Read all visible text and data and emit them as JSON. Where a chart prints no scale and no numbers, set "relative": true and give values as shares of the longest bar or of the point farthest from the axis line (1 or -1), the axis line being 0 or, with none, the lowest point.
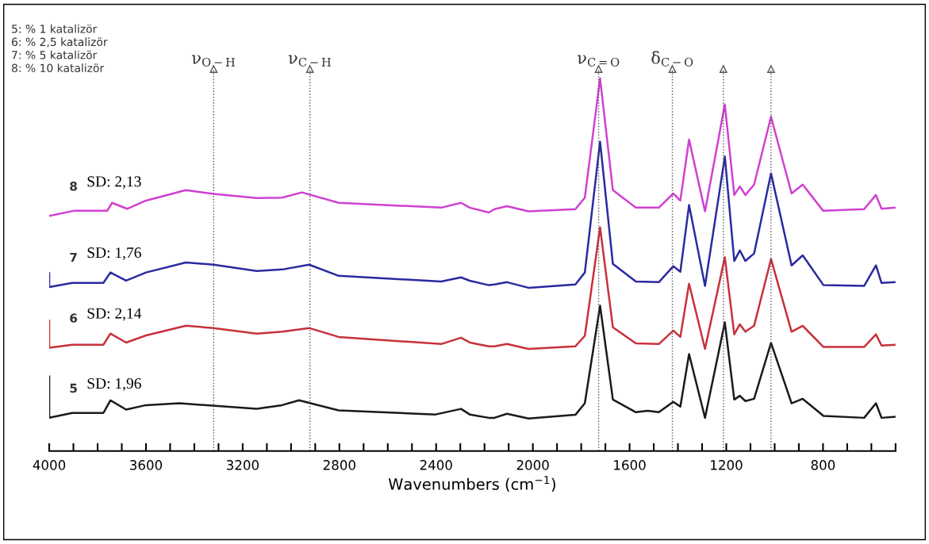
{
  "chart_data": {
    "type": "line",
    "relative": true,
    "xlabel": "Wavenumbers (cm$^{−1}$)",
    "xlim": [
      4000,
      500
    ],
    "xticks": [
      4000,
      {
        "value": 3900,
        "label": null
      },
      {
        "value": 3800,
        "label": null
      },
      {
        "value": 3700,
        "label": null
      },
      3600,
      {
        "value": 3500,
        "label": null
      },
      {
        "value": 3400,
        "label": null
      },
      {
        "value": 3300,
        "label": null
      },
      3200,
      {
        "value": 3100,
        "label": null
      },
      {
        "value": 3000,
        "label": null
      },
      {
        "value": 2900,
        "label": null
      },
      2800,
      {
        "value": 2700,
        "label": null
      },
      {
        "value": 2600,
        "label": null
      },
      {
        "value": 2500,
        "label": null
      },
      2400,
      {
        "value": 2300,
        "label": null
      },
      {
        "value": 2200,
        "label": null
      },
      {
        "value": 2100,
        "label": null
      },
      2000,
      {
        "value": 1900,
        "label": null
      },
      {
        "value": 1800,
        "label": null
      },
      {
        "value": 1700,
        "label": null
      },
      1600,
      {
        "value": 1500,
        "label": null
      },
      {
        "value": 1400,
        "label": null
      },
      {
        "value": 1300,
        "label": null
      },
      1200,
      {
        "value": 1100,
        "label": null
      },
      {
        "value": 1000,
        "label": null
      },
      {
        "value": 900,
        "label": null
      },
      800,
      {
        "value": 700,
        "label": null
      },
      {
        "value": 600,
        "label": null
      },
      {
        "value": 500,
        "label": null
      }
    ],
    "grid": false,
    "marker": "none",
    "line_style": "solid",
    "series": [
      {
        "name": "5",
        "color": "#1a1a1a",
        "x": [
          4000,
          4000,
          3905,
          3776,
          3747,
          3682,
          3600,
          3461,
          3142,
          3037,
          2967,
          2919,
          2803,
          2402,
          2297,
          2261,
          2182,
          2159,
          2107,
          2018,
          1824,
          1785,
          1722,
          1669,
          1574,
          1525,
          1479,
          1419,
          1390,
          1354,
          1288,
          1206,
          1167,
          1144,
          1121,
          1085,
          1015,
          930,
          884,
          798,
          630,
          581,
          558,
          500
        ],
        "values": [
          0.2,
          0.089,
          0.102,
          0.102,
          0.136,
          0.111,
          0.123,
          0.128,
          0.113,
          0.123,
          0.136,
          0.128,
          0.109,
          0.098,
          0.113,
          0.098,
          0.089,
          0.089,
          0.1,
          0.087,
          0.097,
          0.128,
          0.39,
          0.138,
          0.104,
          0.108,
          0.104,
          0.132,
          0.119,
          0.26,
          0.089,
          0.345,
          0.138,
          0.148,
          0.134,
          0.14,
          0.29,
          0.128,
          0.14,
          0.094,
          0.089,
          0.128,
          0.089,
          0.092
        ]
      },
      {
        "name": "6",
        "color": "#c8313a",
        "x": [
          4000,
          4000,
          3905,
          3776,
          3747,
          3682,
          3600,
          3435,
          3320,
          3142,
          3037,
          2925,
          2803,
          2379,
          2297,
          2261,
          2182,
          2159,
          2107,
          2018,
          1824,
          1785,
          1722,
          1669,
          1574,
          1479,
          1419,
          1390,
          1354,
          1288,
          1206,
          1167,
          1144,
          1121,
          1085,
          1015,
          930,
          884,
          798,
          630,
          581,
          558,
          500
        ],
        "values": [
          0.35,
          0.277,
          0.285,
          0.285,
          0.315,
          0.291,
          0.31,
          0.336,
          0.33,
          0.315,
          0.32,
          0.33,
          0.306,
          0.287,
          0.304,
          0.291,
          0.281,
          0.281,
          0.287,
          0.274,
          0.281,
          0.309,
          0.6,
          0.332,
          0.289,
          0.287,
          0.323,
          0.306,
          0.449,
          0.274,
          0.52,
          0.313,
          0.34,
          0.32,
          0.336,
          0.515,
          0.32,
          0.336,
          0.279,
          0.279,
          0.313,
          0.283,
          0.285
        ]
      },
      {
        "name": "7",
        "color": "#2a2aa0",
        "x": [
          4000,
          4000,
          3905,
          3776,
          3747,
          3682,
          3600,
          3435,
          3320,
          3142,
          3037,
          2925,
          2803,
          2379,
          2297,
          2261,
          2182,
          2159,
          2107,
          2018,
          1824,
          1785,
          1722,
          1669,
          1574,
          1479,
          1419,
          1390,
          1354,
          1288,
          1206,
          1167,
          1144,
          1121,
          1085,
          1015,
          930,
          884,
          798,
          630,
          581,
          558,
          500
        ],
        "values": [
          0.477,
          0.44,
          0.451,
          0.451,
          0.479,
          0.457,
          0.479,
          0.506,
          0.5,
          0.483,
          0.487,
          0.5,
          0.47,
          0.455,
          0.466,
          0.457,
          0.445,
          0.447,
          0.453,
          0.438,
          0.447,
          0.479,
          0.83,
          0.502,
          0.455,
          0.453,
          0.496,
          0.481,
          0.66,
          0.443,
          0.79,
          0.51,
          0.538,
          0.51,
          0.53,
          0.745,
          0.498,
          0.525,
          0.445,
          0.443,
          0.498,
          0.451,
          0.453
        ]
      },
      {
        "name": "8",
        "color": "#d040d0",
        "x": [
          4000,
          3895,
          3760,
          3740,
          3678,
          3600,
          3435,
          3320,
          3142,
          3037,
          2955,
          2803,
          2379,
          2297,
          2261,
          2182,
          2159,
          2107,
          2018,
          1824,
          1785,
          1722,
          1669,
          1574,
          1479,
          1419,
          1390,
          1354,
          1288,
          1206,
          1167,
          1144,
          1121,
          1085,
          1015,
          930,
          884,
          800,
          630,
          581,
          558,
          500
        ],
        "values": [
          0.631,
          0.645,
          0.645,
          0.666,
          0.65,
          0.672,
          0.7,
          0.69,
          0.679,
          0.68,
          0.694,
          0.666,
          0.653,
          0.666,
          0.653,
          0.64,
          0.649,
          0.657,
          0.643,
          0.649,
          0.68,
          1.0,
          0.7,
          0.653,
          0.653,
          0.691,
          0.672,
          0.836,
          0.643,
          0.93,
          0.687,
          0.71,
          0.687,
          0.715,
          0.897,
          0.691,
          0.715,
          0.645,
          0.649,
          0.687,
          0.65,
          0.653
        ]
      }
    ],
    "ref_lines": [
      {
        "axis": "x",
        "value": 3320,
        "label": "ν$_{O−H}$",
        "color": "#555555",
        "line_style": "dotted"
      },
      {
        "axis": "x",
        "value": 2922,
        "label": "ν$_{C−H}$",
        "color": "#555555",
        "line_style": "dotted"
      },
      {
        "axis": "x",
        "value": 1728,
        "label": "ν$_{C=O}$",
        "color": "#555555",
        "line_style": "dotted"
      },
      {
        "axis": "x",
        "value": 1423,
        "label": "δ$_{C−O}$",
        "color": "#555555",
        "line_style": "dotted"
      },
      {
        "axis": "x",
        "value": 1212,
        "label": null,
        "color": "#555555",
        "line_style": "dotted"
      },
      {
        "axis": "x",
        "value": 1015,
        "label": null,
        "color": "#555555",
        "line_style": "dotted"
      }
    ],
    "annotations": [
      "5: % 1 katalizör",
      "6: % 2,5 katalizör",
      "7: % 5 katalizör",
      "8: % 10 katalizör",
      "SD: 1,96",
      "SD: 2,14",
      "SD: 1,76",
      "SD: 2,13"
    ]
  }
}
